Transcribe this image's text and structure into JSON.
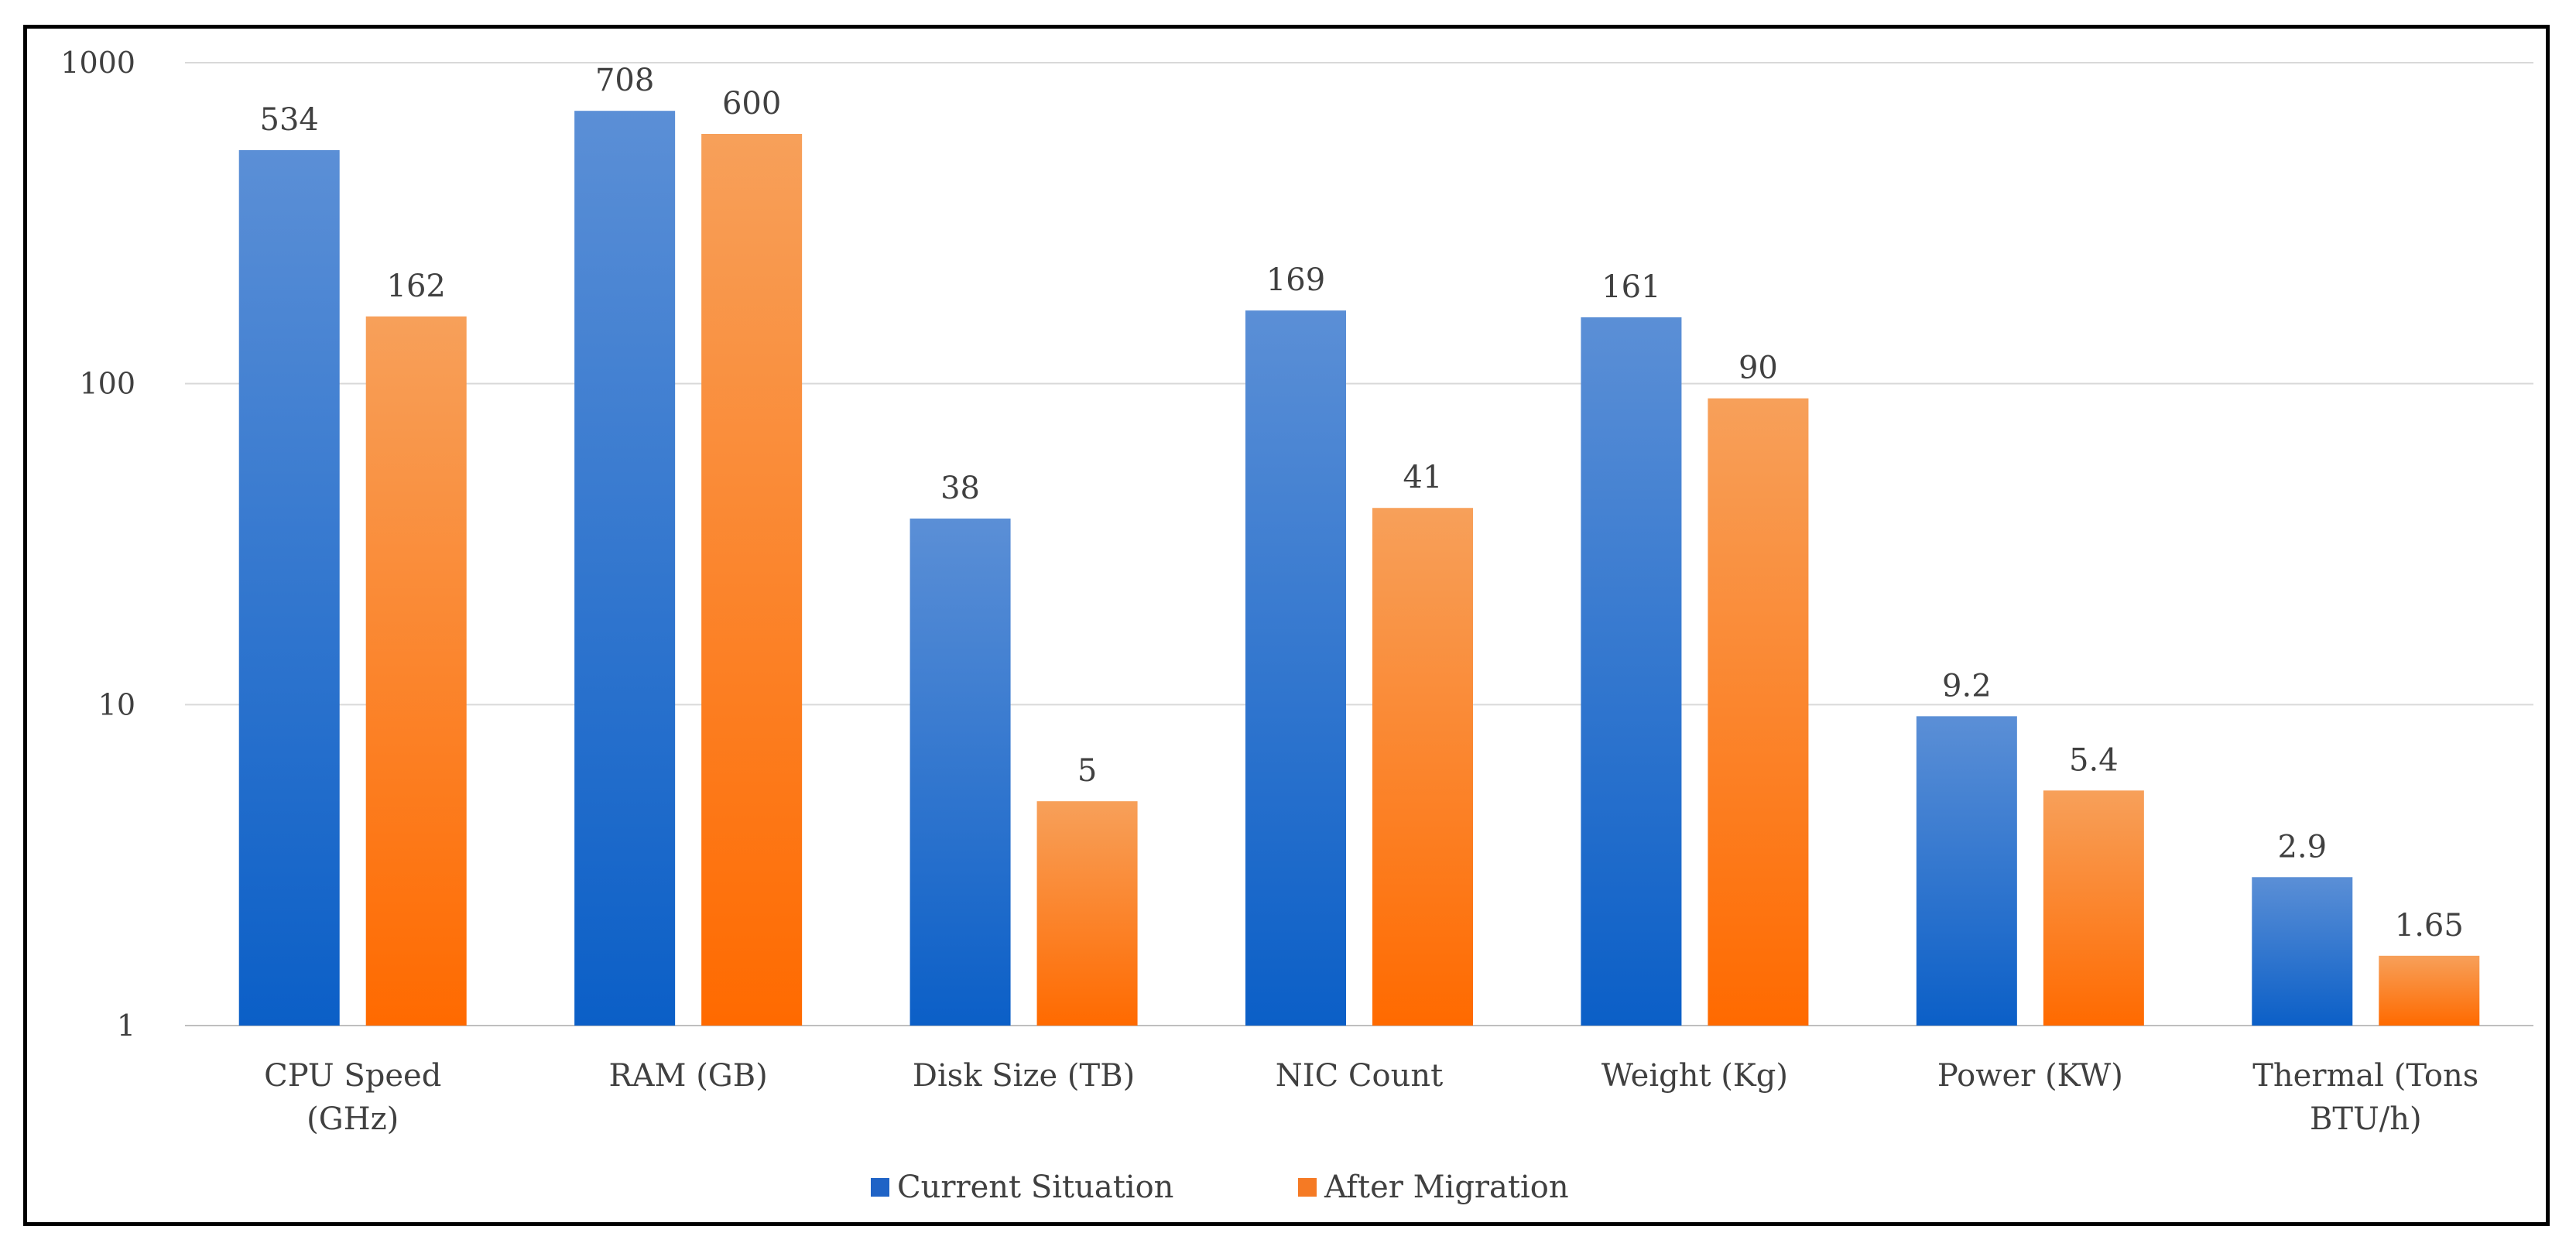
{
  "chart_data": {
    "type": "bar",
    "scale": "log",
    "title": "",
    "xlabel": "",
    "ylabel": "",
    "ylim": [
      1,
      1000
    ],
    "yticks": [
      1,
      10,
      100,
      1000
    ],
    "grid": true,
    "legend_position": "bottom",
    "categories": [
      [
        "CPU Speed",
        "(GHz)"
      ],
      [
        "RAM (GB)"
      ],
      [
        "Disk Size (TB)"
      ],
      [
        "NIC Count"
      ],
      [
        "Weight (Kg)"
      ],
      [
        "Power (KW)"
      ],
      [
        "Thermal (Tons",
        "BTU/h)"
      ]
    ],
    "series": [
      {
        "name": "Current Situation",
        "color_top": "#5b8fd6",
        "color_bottom": "#0b5fc7",
        "legend_color": "#1f63c6",
        "values": [
          534,
          708,
          38,
          169,
          161,
          9.2,
          2.9
        ],
        "labels": [
          "534",
          "708",
          "38",
          "169",
          "161",
          "9.2",
          "2.9"
        ]
      },
      {
        "name": "After Migration",
        "color_top": "#f7a05a",
        "color_bottom": "#ff6a00",
        "legend_color": "#f57a24",
        "values": [
          162,
          600,
          5,
          41,
          90,
          5.4,
          1.65
        ],
        "labels": [
          "162",
          "600",
          "5",
          "41",
          "90",
          "5.4",
          "1.65"
        ]
      }
    ]
  }
}
